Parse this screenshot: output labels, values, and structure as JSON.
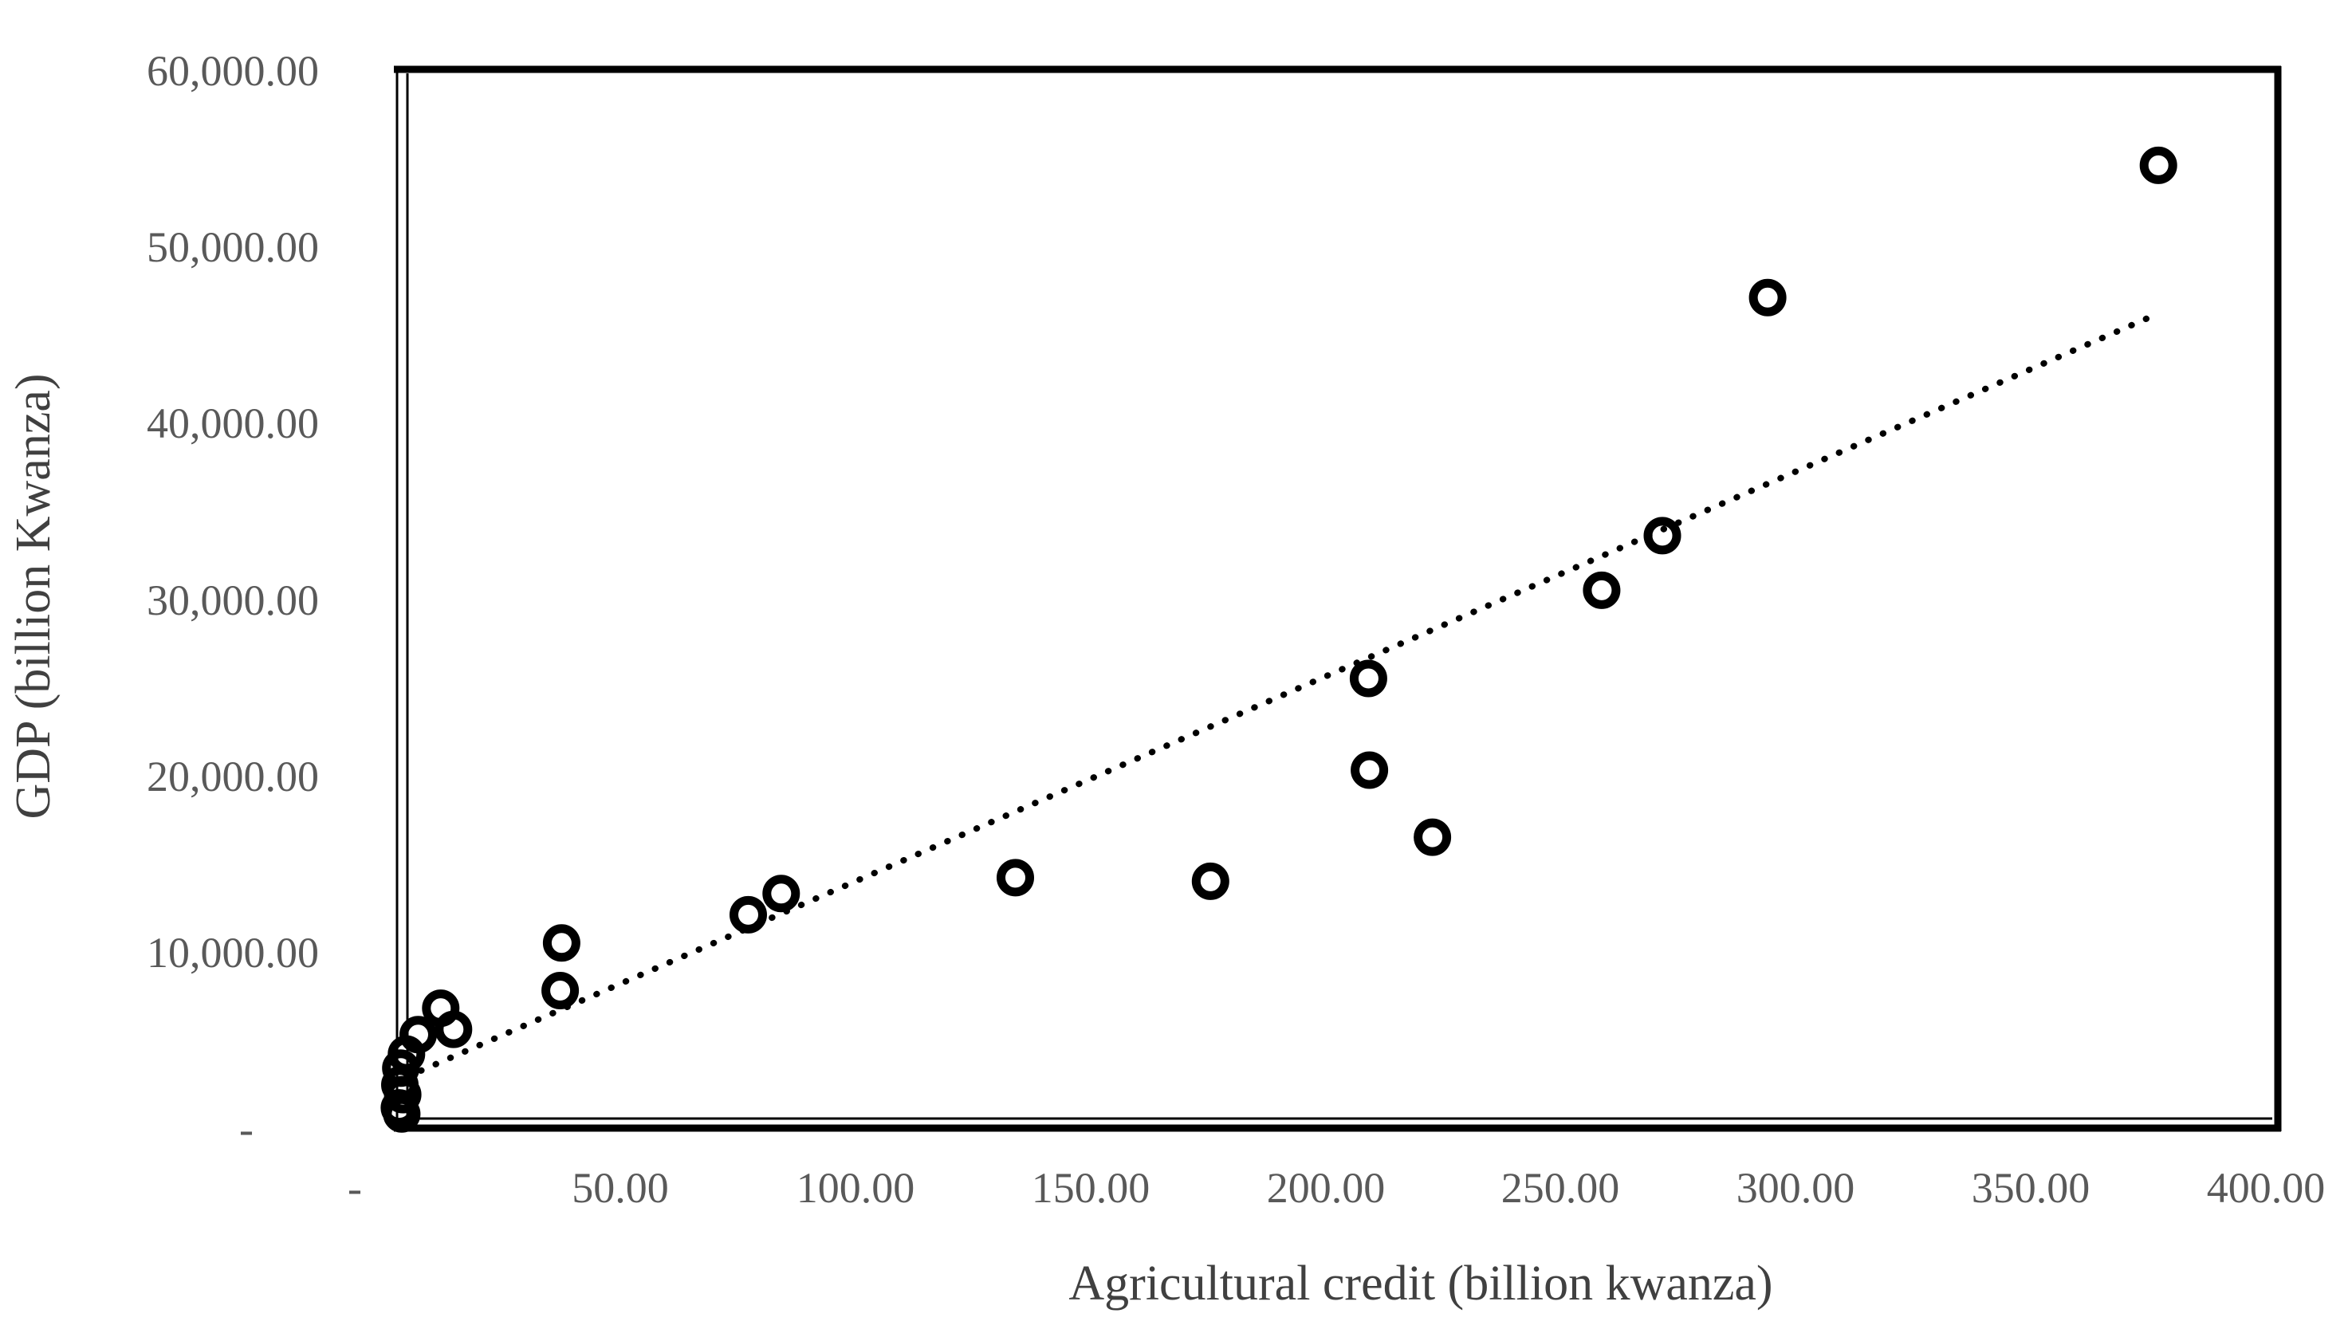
{
  "chart_data": {
    "type": "scatter",
    "title": "",
    "xlabel": "Agricultural credit (billion kwanza)",
    "ylabel": "GDP (billion Kwanza)",
    "xlim": [
      0,
      400
    ],
    "ylim": [
      0,
      60000
    ],
    "grid": false,
    "legend": false,
    "marker": "open-circle",
    "x_ticks": [
      {
        "value": 0,
        "label": "-"
      },
      {
        "value": 50,
        "label": "50.00"
      },
      {
        "value": 100,
        "label": "100.00"
      },
      {
        "value": 150,
        "label": "150.00"
      },
      {
        "value": 200,
        "label": "200.00"
      },
      {
        "value": 250,
        "label": "250.00"
      },
      {
        "value": 300,
        "label": "300.00"
      },
      {
        "value": 350,
        "label": "350.00"
      },
      {
        "value": 400,
        "label": "400.00"
      }
    ],
    "y_ticks": [
      {
        "value": 0,
        "label": "-"
      },
      {
        "value": 10000,
        "label": "10,000.00"
      },
      {
        "value": 20000,
        "label": "20,000.00"
      },
      {
        "value": 30000,
        "label": "30,000.00"
      },
      {
        "value": 40000,
        "label": "40,000.00"
      },
      {
        "value": 50000,
        "label": "50,000.00"
      },
      {
        "value": 60000,
        "label": "60,000.00"
      }
    ],
    "points": [
      [
        0.5,
        1150
      ],
      [
        1.0,
        800
      ],
      [
        0.6,
        2450
      ],
      [
        1.2,
        1900
      ],
      [
        0.8,
        3400
      ],
      [
        2.0,
        4200
      ],
      [
        4.5,
        5300
      ],
      [
        9.3,
        6800
      ],
      [
        12.0,
        5600
      ],
      [
        34.7,
        7800
      ],
      [
        35.0,
        10500
      ],
      [
        74.7,
        12100
      ],
      [
        81.7,
        13300
      ],
      [
        131.5,
        14200
      ],
      [
        173.0,
        14000
      ],
      [
        206.8,
        20300
      ],
      [
        206.6,
        25500
      ],
      [
        220.2,
        16500
      ],
      [
        256.2,
        30500
      ],
      [
        269.1,
        33600
      ],
      [
        291.5,
        47100
      ],
      [
        374.6,
        54600
      ]
    ],
    "trendline": {
      "style": "dotted",
      "x1": 2,
      "y1": 2900,
      "x2": 374.6,
      "y2": 46200
    },
    "colors": {
      "marker": "#000000",
      "trendline": "#000000",
      "border": "#000000",
      "tick_label": "#595959",
      "axis_title": "#404040",
      "background": "#ffffff"
    }
  }
}
